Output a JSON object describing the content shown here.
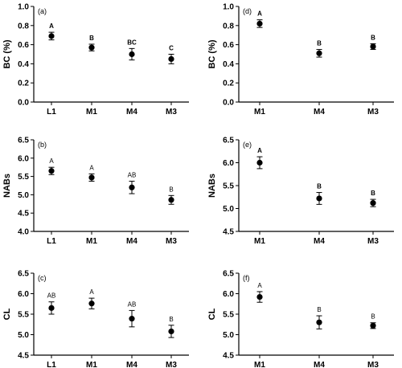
{
  "chart_data": [
    {
      "type": "scatter",
      "panel": "(a)",
      "ylabel": "BC (%)",
      "categories": [
        "L1",
        "M1",
        "M4",
        "M3"
      ],
      "values": [
        0.69,
        0.57,
        0.5,
        0.45
      ],
      "errors": [
        0.04,
        0.035,
        0.06,
        0.05
      ],
      "letters": [
        "A",
        "B",
        "BC",
        "C"
      ],
      "letters_bold": true,
      "ylim": [
        0.0,
        1.0
      ],
      "yticks": [
        "0.0",
        "0.2",
        "0.4",
        "0.6",
        "0.8",
        "1.0"
      ]
    },
    {
      "type": "scatter",
      "panel": "(d)",
      "ylabel": "BC (%)",
      "categories": [
        "M1",
        "M4",
        "M3"
      ],
      "values": [
        0.82,
        0.51,
        0.58
      ],
      "errors": [
        0.04,
        0.04,
        0.03
      ],
      "letters": [
        "A",
        "B",
        "B"
      ],
      "letters_bold": true,
      "ylim": [
        0.0,
        1.0
      ],
      "yticks": [
        "0.0",
        "0.2",
        "0.4",
        "0.6",
        "0.8",
        "1.0"
      ]
    },
    {
      "type": "scatter",
      "panel": "(b)",
      "ylabel": "NABs",
      "categories": [
        "L1",
        "M1",
        "M4",
        "M3"
      ],
      "values": [
        5.65,
        5.47,
        5.2,
        4.86
      ],
      "errors": [
        0.1,
        0.1,
        0.17,
        0.12
      ],
      "letters": [
        "A",
        "A",
        "AB",
        "B"
      ],
      "letters_bold": false,
      "ylim": [
        4.0,
        6.5
      ],
      "yticks": [
        "4.0",
        "4.5",
        "5.0",
        "5.5",
        "6.0",
        "6.5"
      ]
    },
    {
      "type": "scatter",
      "panel": "(e)",
      "ylabel": "NABs",
      "categories": [
        "M1",
        "M4",
        "M3"
      ],
      "values": [
        6.0,
        5.22,
        5.12
      ],
      "errors": [
        0.13,
        0.13,
        0.08
      ],
      "letters": [
        "A",
        "B",
        "B"
      ],
      "letters_bold": true,
      "ylim": [
        4.5,
        6.5
      ],
      "yticks": [
        "4.5",
        "5.0",
        "5.5",
        "6.0",
        "6.5"
      ]
    },
    {
      "type": "scatter",
      "panel": "(c)",
      "ylabel": "CL",
      "categories": [
        "L1",
        "M1",
        "M4",
        "M3"
      ],
      "values": [
        5.65,
        5.76,
        5.39,
        5.08
      ],
      "errors": [
        0.15,
        0.13,
        0.2,
        0.15
      ],
      "letters": [
        "AB",
        "A",
        "AB",
        "B"
      ],
      "letters_bold": false,
      "ylim": [
        4.5,
        6.5
      ],
      "yticks": [
        "4.5",
        "5.0",
        "5.5",
        "6.0",
        "6.5"
      ]
    },
    {
      "type": "scatter",
      "panel": "(f)",
      "ylabel": "CL",
      "categories": [
        "M1",
        "M4",
        "M3"
      ],
      "values": [
        5.92,
        5.3,
        5.22
      ],
      "errors": [
        0.13,
        0.16,
        0.07
      ],
      "letters": [
        "A",
        "B",
        "B"
      ],
      "letters_bold": false,
      "ylim": [
        4.5,
        6.5
      ],
      "yticks": [
        "4.5",
        "5.0",
        "5.5",
        "6.0",
        "6.5"
      ]
    }
  ]
}
